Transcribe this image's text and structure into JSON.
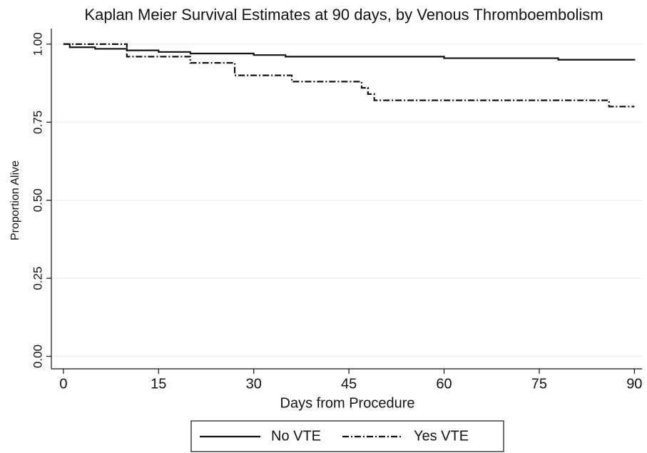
{
  "chart_data": {
    "type": "step",
    "title": "Kaplan Meier Survival Estimates at 90 days, by Venous Thromboembolism",
    "x_label": "Days from Procedure",
    "y_label": "Proportion Alive",
    "xlim": [
      -1.9,
      91.2
    ],
    "xticks": [
      0,
      15,
      30,
      45,
      60,
      75,
      90
    ],
    "ylim": [
      -0.04,
      1.05
    ],
    "yticks": [
      {
        "value": 0,
        "label": "0.00"
      },
      {
        "value": 0.25,
        "label": "0.25"
      },
      {
        "value": 0.5,
        "label": "0.50"
      },
      {
        "value": 0.75,
        "label": "0.75"
      },
      {
        "value": 1,
        "label": "1.00"
      }
    ],
    "grid": true,
    "legend": "bottom",
    "series": [
      {
        "name": "No VTE",
        "color": "#111111",
        "linestyle": "solid",
        "x": [
          0,
          1,
          5,
          10,
          15,
          20,
          30,
          35,
          60,
          78,
          90
        ],
        "values": [
          1.0,
          0.99,
          0.985,
          0.98,
          0.975,
          0.97,
          0.965,
          0.96,
          0.955,
          0.95,
          0.948
        ]
      },
      {
        "name": "Yes VTE",
        "color": "#111111",
        "linestyle": "dashdot",
        "x": [
          0,
          10,
          20,
          27,
          36,
          47,
          48,
          49,
          86,
          90
        ],
        "values": [
          1.0,
          0.96,
          0.94,
          0.9,
          0.88,
          0.86,
          0.84,
          0.82,
          0.8,
          0.8
        ]
      }
    ]
  }
}
